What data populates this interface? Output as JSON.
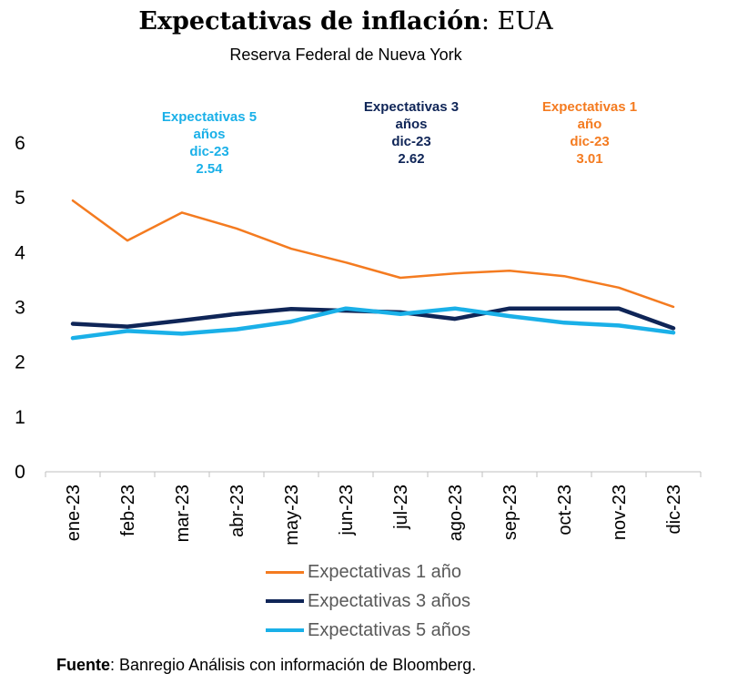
{
  "header": {
    "title_bold": "Expectativas de inflación",
    "title_rest": ": EUA",
    "subtitle": "Reserva Federal de Nueva York"
  },
  "chart_data": {
    "type": "line",
    "categories": [
      "ene-23",
      "feb-23",
      "mar-23",
      "abr-23",
      "may-23",
      "jun-23",
      "jul-23",
      "ago-23",
      "sep-23",
      "oct-23",
      "nov-23",
      "dic-23"
    ],
    "ylim": [
      0,
      6
    ],
    "yticks": [
      0,
      1,
      2,
      3,
      4,
      5,
      6
    ],
    "grid": false,
    "legend_position": "bottom",
    "series": [
      {
        "name": "Expectativas 1 año",
        "color": "#F47B20",
        "values": [
          4.95,
          4.22,
          4.73,
          4.44,
          4.07,
          3.82,
          3.54,
          3.62,
          3.67,
          3.57,
          3.36,
          3.01
        ]
      },
      {
        "name": "Expectativas 3 años",
        "color": "#0F2557",
        "values": [
          2.7,
          2.65,
          2.76,
          2.88,
          2.97,
          2.94,
          2.91,
          2.79,
          2.98,
          2.98,
          2.98,
          2.62
        ]
      },
      {
        "name": "Expectativas 5 años",
        "color": "#1AB0E8",
        "values": [
          2.44,
          2.57,
          2.52,
          2.6,
          2.74,
          2.98,
          2.88,
          2.98,
          2.84,
          2.72,
          2.67,
          2.54
        ]
      }
    ],
    "annotations": [
      {
        "color": "#1AB0E8",
        "lines": [
          "Expectativas 5",
          "años",
          "dic-23",
          "2.54"
        ]
      },
      {
        "color": "#0F2557",
        "lines": [
          "Expectativas 3",
          "años",
          "dic-23",
          "2.62"
        ]
      },
      {
        "color": "#F47B20",
        "lines": [
          "Expectativas 1",
          "año",
          "dic-23",
          "3.01"
        ]
      }
    ]
  },
  "footer": {
    "source_label": "Fuente",
    "source_text": ": Banregio Análisis con información de Bloomberg."
  }
}
